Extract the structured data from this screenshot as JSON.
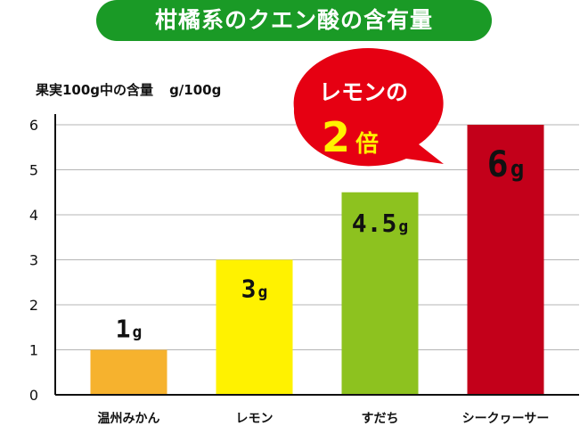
{
  "chart_data": {
    "type": "bar",
    "title": "柑橘系のクエン酸の含有量",
    "ylabel": "果実100g中の含量",
    "yunit": "g/100g",
    "categories": [
      "温州みかん",
      "レモン",
      "すだち",
      "シークヮーサー"
    ],
    "values": [
      1,
      3,
      4.5,
      6
    ],
    "data_labels": [
      {
        "num": "1",
        "unit": "g"
      },
      {
        "num": "3",
        "unit": "g"
      },
      {
        "num": "4.5",
        "unit": "g"
      },
      {
        "num": "6",
        "unit": "g"
      }
    ],
    "colors": [
      "#f6b22e",
      "#fff200",
      "#8dc21f",
      "#c3001a"
    ],
    "ylim": [
      0,
      6
    ],
    "yticks": [
      0,
      1,
      2,
      3,
      4,
      5,
      6
    ],
    "grid": true,
    "callout": {
      "line1": "レモンの",
      "line2_num": "2",
      "line2_text": "倍",
      "color": "#e60012"
    },
    "title_color": "#1a9a26"
  }
}
